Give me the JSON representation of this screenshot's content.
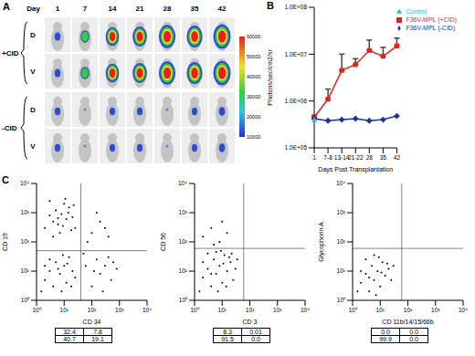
{
  "panel_a": {
    "label": "A",
    "day_title": "Day",
    "days": [
      "1",
      "7",
      "14",
      "21",
      "28",
      "35",
      "42"
    ],
    "groups": [
      {
        "label": "+CID",
        "views": [
          "D",
          "V"
        ]
      },
      {
        "label": "-CID",
        "views": [
          "D",
          "V"
        ]
      }
    ],
    "colorbar": {
      "ticks": [
        10000,
        20000,
        30000,
        40000,
        50000,
        60000
      ]
    }
  },
  "chart_data": [
    {
      "label": "B",
      "type": "line",
      "x_label": "Days Post Transplantation",
      "y_label": "Photons/sec/cm2/sr",
      "categories": [
        "1",
        "7-8",
        "13-14",
        "21-22",
        "28",
        "35",
        "42"
      ],
      "log": "y",
      "ylim": [
        100000,
        100000000
      ],
      "yticks": [
        {
          "value": 100000,
          "label": "1.0E+05"
        },
        {
          "value": 1000000,
          "label": "1.0E+06"
        },
        {
          "value": 10000000,
          "label": "1.0E+07"
        },
        {
          "value": 100000000,
          "label": "1.0E+08"
        }
      ],
      "legend": "top right",
      "series": [
        {
          "name": "F36V-MPL (+CID)",
          "color": "#e3231b",
          "marker": "square",
          "values": [
            450000,
            1100000,
            4500000,
            6000000,
            12000000,
            9000000,
            15000000
          ],
          "errors": [
            50000,
            700000,
            5500000,
            2000000,
            8000000,
            5000000,
            7000000
          ]
        },
        {
          "name": "F36V-MPL (-CID)",
          "color": "#1f2fa8",
          "marker": "diamond",
          "values": [
            420000,
            380000,
            400000,
            420000,
            380000,
            400000,
            480000
          ]
        },
        {
          "name": "Control",
          "color": "#33b5e5",
          "marker": "triangle",
          "values": [
            400000,
            null,
            null,
            null,
            null,
            null,
            null
          ]
        }
      ]
    },
    {
      "label": "C",
      "type": "scatter",
      "x_label": "CD 34",
      "y_label": "CD 19",
      "log": true,
      "xlim": [
        1,
        10000
      ],
      "ylim": [
        1,
        10000
      ],
      "xticks": [
        {
          "value": 1,
          "label": "10⁰"
        },
        {
          "value": 10,
          "label": "10¹"
        },
        {
          "value": 100,
          "label": "10²"
        },
        {
          "value": 1000,
          "label": "10³"
        },
        {
          "value": 10000,
          "label": "10⁴"
        }
      ],
      "yticks": [
        {
          "value": 1,
          "label": "10⁰"
        },
        {
          "value": 10,
          "label": "10¹"
        },
        {
          "value": 100,
          "label": "10²"
        },
        {
          "value": 1000,
          "label": "10³"
        },
        {
          "value": 10000,
          "label": "10⁴"
        }
      ],
      "color": "#000000",
      "gates": {
        "x": 40,
        "y": 50
      },
      "x": [
        2,
        3,
        4,
        5,
        6,
        8,
        10,
        12,
        15,
        20,
        25,
        3,
        7,
        9,
        14,
        18,
        4,
        11,
        22,
        6,
        1.5,
        2,
        3,
        4,
        5,
        7,
        10,
        12,
        15,
        20,
        3,
        8,
        25,
        6,
        2,
        9,
        18,
        13,
        100,
        200,
        300,
        150,
        500,
        800,
        250,
        400,
        120,
        600,
        100,
        200,
        400,
        150,
        300,
        50,
        70,
        60
      ],
      "y": [
        300,
        800,
        500,
        1200,
        400,
        900,
        2000,
        600,
        1500,
        700,
        300,
        2500,
        200,
        350,
        1000,
        250,
        150,
        3000,
        1800,
        650,
        2,
        5,
        10,
        3,
        20,
        8,
        15,
        4,
        30,
        10,
        25,
        2,
        6,
        12,
        15,
        35,
        3,
        18,
        3,
        8,
        15,
        25,
        5,
        12,
        2,
        30,
        10,
        20,
        200,
        500,
        150,
        1000,
        300,
        40,
        100,
        15
      ],
      "quadrant_values": [
        [
          32.4,
          7.8
        ],
        [
          40.7,
          19.1
        ]
      ]
    },
    {
      "type": "scatter",
      "x_label": "CD 3",
      "y_label": "CD 56",
      "log": true,
      "xlim": [
        1,
        10000
      ],
      "ylim": [
        1,
        10000
      ],
      "xticks": [
        {
          "value": 1,
          "label": "10⁰"
        },
        {
          "value": 10,
          "label": "10¹"
        },
        {
          "value": 100,
          "label": "10²"
        },
        {
          "value": 1000,
          "label": "10³"
        },
        {
          "value": 10000,
          "label": "10⁴"
        }
      ],
      "yticks": [
        {
          "value": 1,
          "label": "10⁰"
        },
        {
          "value": 10,
          "label": "10¹"
        },
        {
          "value": 100,
          "label": "10²"
        },
        {
          "value": 1000,
          "label": "10³"
        },
        {
          "value": 10000,
          "label": "10⁴"
        }
      ],
      "color": "#000000",
      "gates": {
        "x": 60,
        "y": 60
      },
      "x": [
        2,
        4,
        8,
        15,
        5,
        10,
        1.5,
        2,
        3,
        4,
        5,
        6,
        8,
        10,
        12,
        15,
        20,
        25,
        3,
        7,
        30,
        2,
        9,
        18,
        4,
        11,
        6,
        14,
        22,
        35
      ],
      "y": [
        150,
        300,
        100,
        200,
        80,
        500,
        2,
        6,
        12,
        3,
        25,
        8,
        15,
        4,
        35,
        10,
        20,
        5,
        40,
        2,
        12,
        20,
        50,
        30,
        8,
        18,
        45,
        3,
        40,
        25
      ],
      "quadrant_values": [
        [
          8.3,
          0.01
        ],
        [
          91.5,
          {
            "value": 0,
            "label": "0.0"
          }
        ]
      ]
    },
    {
      "type": "scatter",
      "x_label": "CD 11b/14/15/66b",
      "y_label": "Glycophorin A",
      "log": true,
      "xlim": [
        1,
        10000
      ],
      "ylim": [
        1,
        10000
      ],
      "xticks": [
        {
          "value": 1,
          "label": "10⁰"
        },
        {
          "value": 10,
          "label": "10¹"
        },
        {
          "value": 100,
          "label": "10²"
        },
        {
          "value": 1000,
          "label": "10³"
        },
        {
          "value": 10000,
          "label": "10⁴"
        }
      ],
      "yticks": [
        {
          "value": 1,
          "label": "10⁰"
        },
        {
          "value": 10,
          "label": "10¹"
        },
        {
          "value": 100,
          "label": "10²"
        },
        {
          "value": 1000,
          "label": "10³"
        },
        {
          "value": 10000,
          "label": "10⁴"
        }
      ],
      "color": "#000000",
      "gates": {
        "x": 60,
        "y": 60
      },
      "x": [
        1.5,
        2,
        3,
        4,
        5,
        6,
        8,
        10,
        12,
        15,
        20,
        3,
        7,
        25,
        2,
        9,
        18,
        4,
        11,
        30,
        6
      ],
      "y": [
        2,
        4,
        8,
        2,
        15,
        5,
        10,
        3,
        20,
        7,
        12,
        25,
        1.5,
        5,
        10,
        30,
        18,
        6,
        9,
        15,
        35
      ],
      "quadrant_values": [
        [
          {
            "value": 0,
            "label": "0.0"
          },
          {
            "value": 0,
            "label": "0.0"
          }
        ],
        [
          99.9,
          {
            "value": 0,
            "label": "0.0"
          }
        ]
      ]
    }
  ]
}
